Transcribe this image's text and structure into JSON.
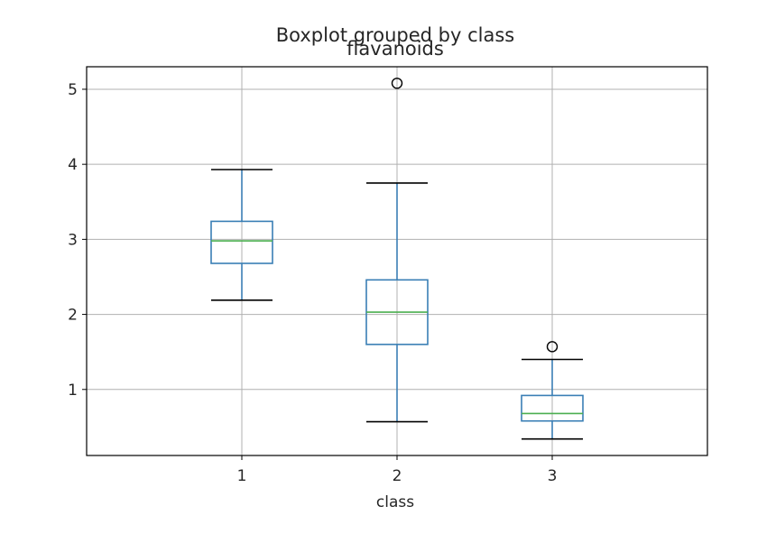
{
  "chart_data": {
    "type": "box",
    "suptitle": "Boxplot grouped by class",
    "title": "flavanoids",
    "xlabel": "class",
    "ylabel": "",
    "categories": [
      "1",
      "2",
      "3"
    ],
    "ylim": [
      0.12,
      5.3
    ],
    "yticks": [
      "1",
      "2",
      "3",
      "4",
      "5"
    ],
    "grid": true,
    "boxes": [
      {
        "category": "1",
        "whisker_low": 2.19,
        "q1": 2.68,
        "median": 2.98,
        "q3": 3.24,
        "whisker_high": 3.93,
        "outliers": []
      },
      {
        "category": "2",
        "whisker_low": 0.57,
        "q1": 1.6,
        "median": 2.03,
        "q3": 2.46,
        "whisker_high": 3.75,
        "outliers": [
          5.08
        ]
      },
      {
        "category": "3",
        "whisker_low": 0.34,
        "q1": 0.58,
        "median": 0.68,
        "q3": 0.92,
        "whisker_high": 1.4,
        "outliers": [
          1.57
        ]
      }
    ],
    "colors": {
      "box": "#3a7fb5",
      "median": "#4caf50",
      "whisker_cap": "#000000",
      "grid": "#b0b0b0",
      "outlier": "#000000"
    }
  }
}
